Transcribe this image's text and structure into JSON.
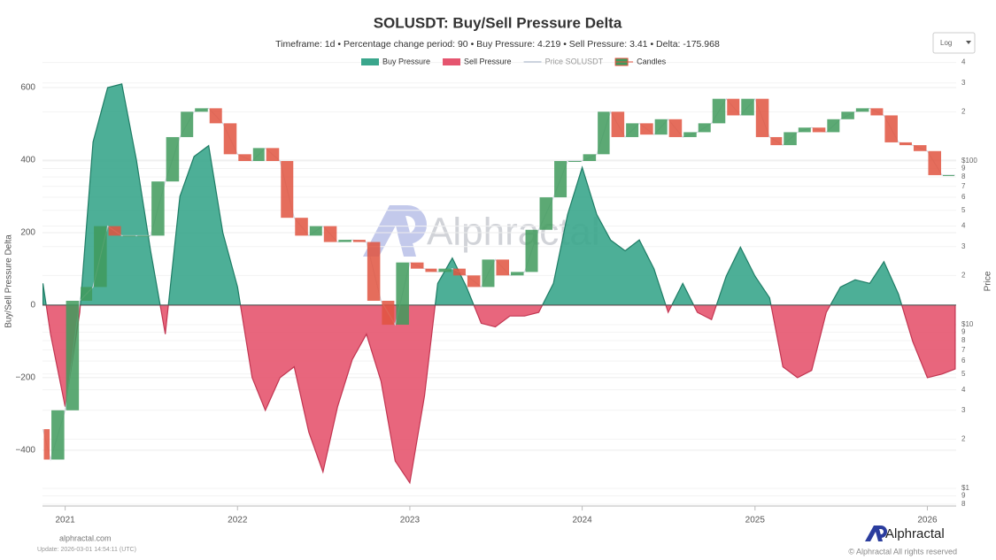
{
  "chart_data": {
    "type": "delta-area",
    "title": "SOLUSDT: Buy/Sell Pressure Delta",
    "subtitle": "Timeframe: 1d  •  Percentage change period: 90  •  Buy Pressure: 4.219 • Sell Pressure: 3.41 • Delta: -175.968",
    "scale_control": "Log",
    "ylabel": "Buy/Sell Pressure Delta",
    "y2label": "Price",
    "watermark": "Alphractal",
    "x": [
      "2020-11-15",
      "2020-12-01",
      "2021-01-01",
      "2021-02-01",
      "2021-03-01",
      "2021-04-01",
      "2021-05-01",
      "2021-06-01",
      "2021-07-01",
      "2021-08-01",
      "2021-09-01",
      "2021-10-01",
      "2021-11-01",
      "2021-12-01",
      "2022-01-01",
      "2022-02-01",
      "2022-03-01",
      "2022-04-01",
      "2022-05-01",
      "2022-06-01",
      "2022-07-01",
      "2022-08-01",
      "2022-09-01",
      "2022-10-01",
      "2022-11-01",
      "2022-12-01",
      "2023-01-01",
      "2023-02-01",
      "2023-03-01",
      "2023-04-01",
      "2023-05-01",
      "2023-06-01",
      "2023-07-01",
      "2023-08-01",
      "2023-09-01",
      "2023-10-01",
      "2023-11-01",
      "2023-12-01",
      "2024-01-01",
      "2024-02-01",
      "2024-03-01",
      "2024-04-01",
      "2024-05-01",
      "2024-06-01",
      "2024-07-01",
      "2024-08-01",
      "2024-09-01",
      "2024-10-01",
      "2024-11-01",
      "2024-12-01",
      "2025-01-01",
      "2025-02-01",
      "2025-03-01",
      "2025-04-01",
      "2025-05-01",
      "2025-06-01",
      "2025-07-01",
      "2025-08-01",
      "2025-09-01",
      "2025-10-01",
      "2025-11-01",
      "2025-12-01",
      "2026-01-01",
      "2026-02-01",
      "2026-03-01"
    ],
    "series": [
      {
        "name": "Buy Pressure",
        "color": "#3aa68c",
        "negative_name": "Sell Pressure",
        "negative_color": "#e5556f",
        "values": [
          60,
          -80,
          -280,
          -20,
          450,
          600,
          610,
          400,
          150,
          -80,
          300,
          410,
          440,
          200,
          50,
          -200,
          -290,
          -200,
          -170,
          -350,
          -460,
          -280,
          -150,
          -80,
          -210,
          -430,
          -490,
          -250,
          60,
          130,
          50,
          -50,
          -60,
          -30,
          -30,
          -20,
          60,
          250,
          380,
          250,
          180,
          150,
          180,
          100,
          -20,
          60,
          -20,
          -40,
          80,
          160,
          80,
          20,
          -170,
          -200,
          -180,
          -20,
          50,
          70,
          60,
          120,
          30,
          -100,
          -200,
          -190,
          -176
        ]
      },
      {
        "name": "Price SOLUSDT",
        "color": "#ccd3de",
        "axis": "y2",
        "values": [
          2.3,
          1.5,
          3,
          14,
          17,
          40,
          35,
          35,
          35,
          75,
          140,
          200,
          210,
          170,
          110,
          100,
          120,
          100,
          45,
          35,
          40,
          32,
          33,
          32,
          14,
          10,
          24,
          22,
          21,
          22,
          20,
          17,
          25,
          20,
          21,
          38,
          60,
          100,
          100,
          110,
          200,
          140,
          170,
          145,
          180,
          140,
          150,
          170,
          240,
          190,
          240,
          140,
          125,
          150,
          160,
          150,
          180,
          200,
          210,
          190,
          130,
          125,
          115,
          82,
          82
        ]
      },
      {
        "name": "Candles",
        "up_color": "#3f9a5c",
        "down_color": "#e0533f"
      }
    ],
    "xlim": [
      "2020-11-14",
      "2026-03-03"
    ],
    "xticks": [
      {
        "value": "2021-01-01",
        "label": "2021"
      },
      {
        "value": "2022-01-01",
        "label": "2022"
      },
      {
        "value": "2023-01-01",
        "label": "2023"
      },
      {
        "value": "2024-01-01",
        "label": "2024"
      },
      {
        "value": "2025-01-01",
        "label": "2025"
      },
      {
        "value": "2026-01-01",
        "label": "2026"
      }
    ],
    "ylim": [
      -554,
      683
    ],
    "yticks": [
      {
        "value": -400,
        "label": "−400"
      },
      {
        "value": -200,
        "label": "−200"
      },
      0,
      200,
      400,
      600
    ],
    "y2lim": [
      0.78,
      429
    ],
    "y2_log": true,
    "y2ticks": [
      {
        "value": 1,
        "label": "$1"
      },
      {
        "value": 0.9,
        "label": "9"
      },
      {
        "value": 0.8,
        "label": "8"
      },
      2,
      3,
      4,
      5,
      6,
      7,
      8,
      9,
      {
        "value": 10,
        "label": "$10"
      },
      {
        "value": 20,
        "label": "2"
      },
      {
        "value": 30,
        "label": "3"
      },
      {
        "value": 40,
        "label": "4"
      },
      {
        "value": 50,
        "label": "5"
      },
      {
        "value": 60,
        "label": "6"
      },
      {
        "value": 70,
        "label": "7"
      },
      {
        "value": 80,
        "label": "8"
      },
      {
        "value": 90,
        "label": "9"
      },
      {
        "value": 100,
        "label": "$100"
      },
      {
        "value": 200,
        "label": "2"
      },
      {
        "value": 300,
        "label": "3"
      },
      {
        "value": 400,
        "label": "4"
      }
    ],
    "grid": true,
    "footer_site": "alphractal.com",
    "footer_update": "Update: 2026-03-01 14:54:11 (UTC)",
    "brand": "Alphractal",
    "copyright": "© Alphractal All rights reserved"
  }
}
